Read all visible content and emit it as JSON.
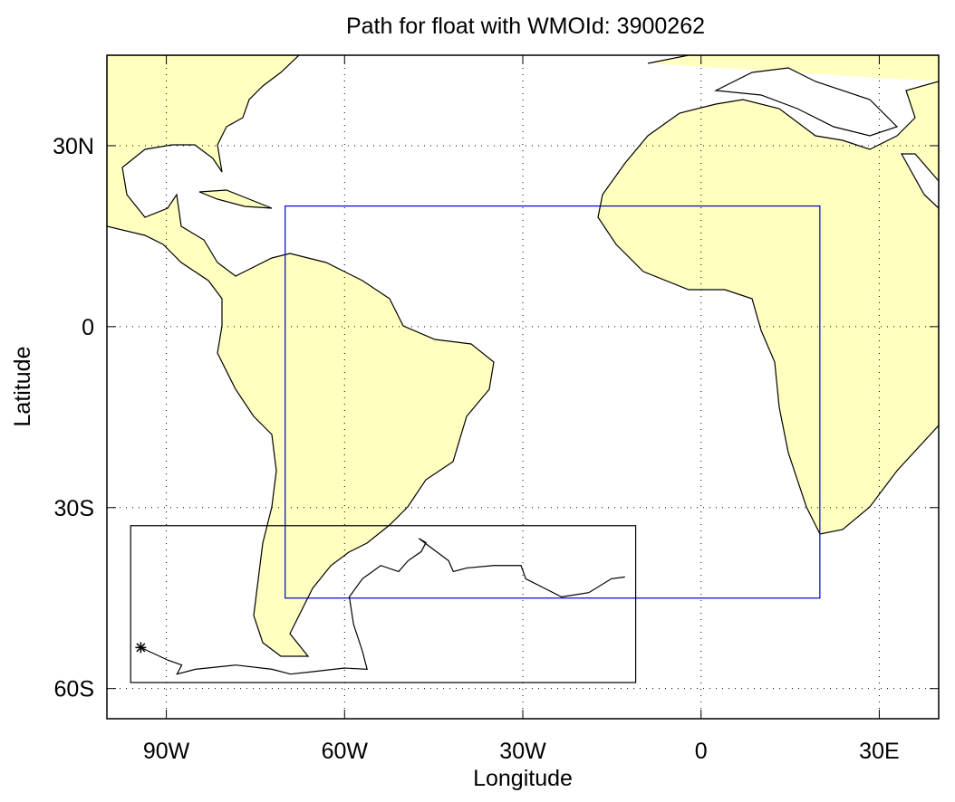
{
  "chart_data": {
    "type": "map",
    "title": "Path for float with WMOId: 3900262",
    "x_label": "Longitude",
    "y_label": "Latitude",
    "xlim": [
      -100,
      40
    ],
    "ylim": [
      -65,
      45
    ],
    "xticks": [
      {
        "value": -90,
        "label": "90W"
      },
      {
        "value": -60,
        "label": "60W"
      },
      {
        "value": -30,
        "label": "30W"
      },
      0,
      {
        "value": 30,
        "label": "30E"
      }
    ],
    "yticks": [
      {
        "value": 30,
        "label": "30N"
      },
      0,
      {
        "value": -30,
        "label": "30S"
      },
      {
        "value": -60,
        "label": "60S"
      }
    ],
    "grid": true,
    "regions": [
      {
        "color": "#0000cc",
        "lon": [
          -70,
          20
        ],
        "lat": [
          -45,
          20
        ]
      },
      {
        "color": "#000000",
        "lon": [
          -96,
          -11
        ],
        "lat": [
          -59,
          -33
        ]
      }
    ],
    "series": [
      {
        "color": "#000000",
        "x": [
          -94.3,
          -89.7,
          -87.4,
          -88.2,
          -85.1,
          -78.3,
          -72.2,
          -69.1,
          -65.3,
          -60.0,
          -56.2,
          -57.0,
          -58.5,
          -59.2,
          -57.0,
          -53.9,
          -50.9,
          -49.3,
          -47.1,
          -46.3,
          -47.5,
          -45.5,
          -42.5,
          -41.7,
          -39.4,
          -34.9,
          -30.3,
          -29.5,
          -26.5,
          -23.5,
          -18.9,
          -15.1,
          -12.8
        ],
        "values": [
          -53.2,
          -55.3,
          -56.1,
          -57.6,
          -56.8,
          -56.1,
          -56.8,
          -57.6,
          -57.2,
          -56.6,
          -56.8,
          -53.8,
          -49.3,
          -44.8,
          -41.8,
          -39.6,
          -40.6,
          -38.8,
          -37.3,
          -35.8,
          -35.1,
          -36.6,
          -38.8,
          -40.6,
          -40.0,
          -39.6,
          -39.6,
          -41.8,
          -43.3,
          -44.8,
          -44.1,
          -41.8,
          -41.5
        ]
      }
    ]
  }
}
